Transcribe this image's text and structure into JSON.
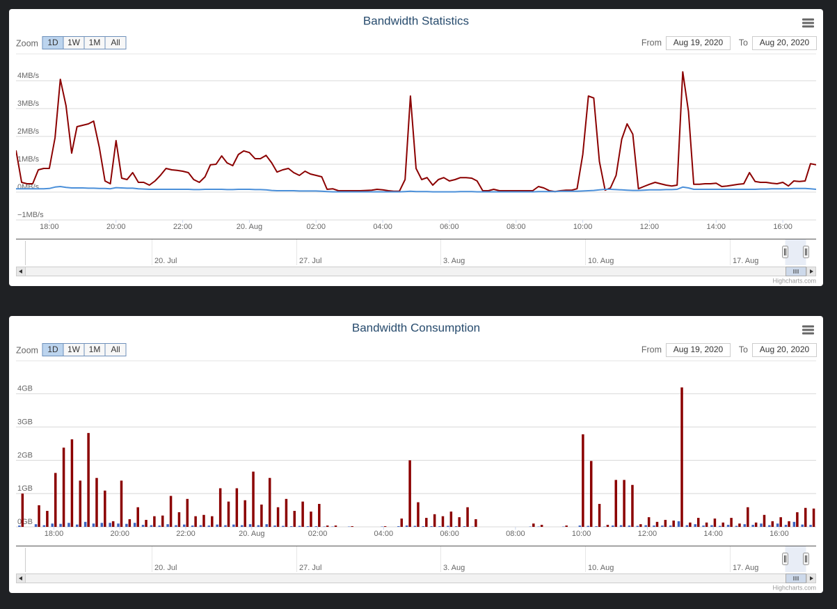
{
  "chart_data": [
    {
      "type": "line",
      "title": "Bandwidth Statistics",
      "zoom_label": "Zoom",
      "zoom_buttons": [
        "1D",
        "1W",
        "1M",
        "All"
      ],
      "selected_zoom": 0,
      "from_label": "From",
      "from": "Aug 19, 2020",
      "to_label": "To",
      "to": "Aug 20, 2020",
      "x": [
        17,
        17.17,
        17.33,
        17.5,
        17.67,
        17.83,
        18,
        18.17,
        18.33,
        18.5,
        18.67,
        18.83,
        19,
        19.17,
        19.33,
        19.5,
        19.67,
        19.83,
        20,
        20.17,
        20.33,
        20.5,
        20.67,
        20.83,
        21,
        21.17,
        21.33,
        21.5,
        21.67,
        21.83,
        22,
        22.17,
        22.33,
        22.5,
        22.67,
        22.83,
        23,
        23.17,
        23.33,
        23.5,
        23.67,
        23.83,
        24,
        24.17,
        24.33,
        24.5,
        24.67,
        24.83,
        25,
        25.17,
        25.33,
        25.5,
        25.67,
        25.83,
        26,
        26.17,
        26.33,
        26.5,
        26.67,
        27,
        27.33,
        27.67,
        27.83,
        28,
        28.17,
        28.33,
        28.5,
        28.67,
        28.83,
        29,
        29.17,
        29.33,
        29.5,
        29.67,
        29.83,
        30,
        30.17,
        30.33,
        30.5,
        30.67,
        30.83,
        31,
        31.17,
        31.33,
        31.5,
        31.83,
        32.17,
        32.5,
        32.67,
        32.83,
        33,
        33.17,
        33.33,
        33.5,
        33.67,
        33.83,
        34,
        34.17,
        34.33,
        34.5,
        34.67,
        34.83,
        35,
        35.17,
        35.33,
        35.5,
        35.67,
        35.83,
        36,
        36.17,
        36.33,
        36.5,
        36.67,
        36.83,
        37,
        37.17,
        37.33,
        37.5,
        37.67,
        37.83,
        38,
        38.17,
        38.33,
        38.5,
        38.67,
        38.83,
        39,
        39.17,
        39.33,
        39.5,
        39.67,
        39.83,
        40,
        40.17,
        40.33,
        40.5,
        40.67,
        40.83,
        41
      ],
      "xlim": [
        17,
        41
      ],
      "xticks": [
        {
          "value": 18,
          "label": "18:00"
        },
        {
          "value": 20,
          "label": "20:00"
        },
        {
          "value": 22,
          "label": "22:00"
        },
        {
          "value": 24,
          "label": "20. Aug"
        },
        {
          "value": 26,
          "label": "02:00"
        },
        {
          "value": 28,
          "label": "04:00"
        },
        {
          "value": 30,
          "label": "06:00"
        },
        {
          "value": 32,
          "label": "08:00"
        },
        {
          "value": 34,
          "label": "10:00"
        },
        {
          "value": 36,
          "label": "12:00"
        },
        {
          "value": 38,
          "label": "14:00"
        },
        {
          "value": 40,
          "label": "16:00"
        }
      ],
      "ylim": [
        -1,
        4.5
      ],
      "yticks": [
        {
          "value": -1,
          "label": "−1MB/s"
        },
        {
          "value": 0,
          "label": "0MB/s"
        },
        {
          "value": 1,
          "label": "1MB/s"
        },
        {
          "value": 2,
          "label": "2MB/s"
        },
        {
          "value": 3,
          "label": "3MB/s"
        },
        {
          "value": 4,
          "label": "4MB/s"
        }
      ],
      "grid": true,
      "series": [
        {
          "color": "#8b0000",
          "values": [
            1.5,
            0.35,
            0.3,
            0.3,
            0.8,
            0.85,
            0.85,
            1.95,
            4.05,
            3.1,
            1.4,
            2.35,
            2.4,
            2.45,
            2.55,
            1.6,
            0.4,
            0.3,
            1.85,
            0.5,
            0.45,
            0.7,
            0.35,
            0.35,
            0.25,
            0.4,
            0.6,
            0.85,
            0.8,
            0.78,
            0.75,
            0.7,
            0.45,
            0.35,
            0.55,
            0.98,
            1.0,
            1.3,
            1.05,
            0.95,
            1.35,
            1.48,
            1.42,
            1.2,
            1.2,
            1.32,
            1.05,
            0.72,
            0.8,
            0.85,
            0.7,
            0.6,
            0.75,
            0.65,
            0.6,
            0.55,
            0.1,
            0.12,
            0.05,
            0.05,
            0.05,
            0.07,
            0.1,
            0.08,
            0.05,
            0.03,
            0.03,
            0.45,
            3.45,
            0.85,
            0.45,
            0.52,
            0.25,
            0.45,
            0.52,
            0.4,
            0.45,
            0.52,
            0.52,
            0.5,
            0.4,
            0.05,
            0.05,
            0.1,
            0.05,
            0.05,
            0.05,
            0.05,
            0.2,
            0.15,
            0.05,
            0.02,
            0.05,
            0.07,
            0.07,
            0.12,
            1.35,
            3.45,
            3.38,
            1.1,
            0.07,
            0.15,
            0.6,
            1.9,
            2.45,
            2.08,
            0.12,
            0.2,
            0.28,
            0.35,
            0.3,
            0.25,
            0.22,
            0.25,
            4.32,
            2.9,
            0.28,
            0.28,
            0.3,
            0.3,
            0.32,
            0.2,
            0.22,
            0.25,
            0.28,
            0.3,
            0.7,
            0.38,
            0.35,
            0.35,
            0.32,
            0.3,
            0.35,
            0.22,
            0.4,
            0.38,
            0.4,
            1.02,
            0.98
          ]
        },
        {
          "color": "#4a8fd9",
          "values": [
            0.12,
            0.12,
            0.12,
            0.12,
            0.12,
            0.12,
            0.13,
            0.18,
            0.2,
            0.17,
            0.15,
            0.15,
            0.15,
            0.14,
            0.14,
            0.13,
            0.13,
            0.12,
            0.16,
            0.15,
            0.14,
            0.14,
            0.12,
            0.11,
            0.1,
            0.1,
            0.1,
            0.1,
            0.1,
            0.1,
            0.1,
            0.1,
            0.09,
            0.09,
            0.1,
            0.1,
            0.1,
            0.1,
            0.09,
            0.09,
            0.1,
            0.1,
            0.1,
            0.09,
            0.09,
            0.08,
            0.06,
            0.05,
            0.05,
            0.05,
            0.05,
            0.04,
            0.04,
            0.04,
            0.04,
            0.03,
            0.02,
            0.01,
            0.01,
            0.01,
            0.01,
            0.01,
            0.01,
            0.01,
            0.01,
            0.01,
            0.01,
            0.02,
            0.03,
            0.02,
            0.02,
            0.02,
            0.01,
            0.01,
            0.01,
            0.01,
            0.01,
            0.02,
            0.02,
            0.02,
            0.01,
            0.01,
            0.01,
            0.01,
            0.01,
            0.01,
            0.01,
            0.01,
            0.02,
            0.02,
            0.02,
            0.02,
            0.03,
            0.03,
            0.03,
            0.03,
            0.04,
            0.05,
            0.06,
            0.08,
            0.1,
            0.1,
            0.09,
            0.08,
            0.07,
            0.06,
            0.06,
            0.07,
            0.08,
            0.08,
            0.08,
            0.09,
            0.09,
            0.1,
            0.18,
            0.15,
            0.1,
            0.1,
            0.1,
            0.1,
            0.1,
            0.1,
            0.1,
            0.1,
            0.1,
            0.1,
            0.1,
            0.1,
            0.11,
            0.11,
            0.12,
            0.12,
            0.12,
            0.12,
            0.13,
            0.13,
            0.13,
            0.12,
            0.1
          ]
        }
      ],
      "navigator_labels": [
        "20. Jul",
        "27. Jul",
        "3. Aug",
        "10. Aug",
        "17. Aug"
      ],
      "credit": "Highcharts.com"
    },
    {
      "type": "bar",
      "title": "Bandwidth Consumption",
      "zoom_label": "Zoom",
      "zoom_buttons": [
        "1D",
        "1W",
        "1M",
        "All"
      ],
      "selected_zoom": 0,
      "from_label": "From",
      "from": "Aug 19, 2020",
      "to_label": "To",
      "to": "Aug 20, 2020",
      "x": [
        17,
        17.5,
        17.75,
        18,
        18.25,
        18.5,
        18.75,
        19,
        19.25,
        19.5,
        19.75,
        20,
        20.25,
        20.5,
        20.75,
        21,
        21.25,
        21.5,
        21.75,
        22,
        22.25,
        22.5,
        22.75,
        23,
        23.25,
        23.5,
        23.75,
        24,
        24.25,
        24.5,
        24.75,
        25,
        25.25,
        25.5,
        25.75,
        26,
        26.25,
        26.5,
        27,
        28,
        28.5,
        28.75,
        29,
        29.25,
        29.5,
        29.75,
        30,
        30.25,
        30.5,
        30.75,
        32.5,
        32.75,
        33.5,
        34,
        34.25,
        34.5,
        34.75,
        35,
        35.25,
        35.5,
        35.75,
        36,
        36.25,
        36.5,
        36.75,
        37,
        37.25,
        37.5,
        37.75,
        38,
        38.25,
        38.5,
        38.75,
        39,
        39.25,
        39.5,
        39.75,
        40,
        40.25,
        40.5,
        40.75,
        41
      ],
      "xlim": [
        16.85,
        41.12
      ],
      "xticks": [
        {
          "value": 18,
          "label": "18:00"
        },
        {
          "value": 20,
          "label": "20:00"
        },
        {
          "value": 22,
          "label": "22:00"
        },
        {
          "value": 24,
          "label": "20. Aug"
        },
        {
          "value": 26,
          "label": "02:00"
        },
        {
          "value": 28,
          "label": "04:00"
        },
        {
          "value": 30,
          "label": "06:00"
        },
        {
          "value": 32,
          "label": "08:00"
        },
        {
          "value": 34,
          "label": "10:00"
        },
        {
          "value": 36,
          "label": "12:00"
        },
        {
          "value": 38,
          "label": "14:00"
        },
        {
          "value": 40,
          "label": "16:00"
        }
      ],
      "ylim": [
        0,
        4.6
      ],
      "yticks": [
        {
          "value": 0,
          "label": "0GB"
        },
        {
          "value": 1,
          "label": "1GB"
        },
        {
          "value": 2,
          "label": "2GB"
        },
        {
          "value": 3,
          "label": "3GB"
        },
        {
          "value": 4,
          "label": "4GB"
        }
      ],
      "grid": true,
      "series": [
        {
          "color": "#3d63c0",
          "values": [
            0.04,
            0.08,
            0.05,
            0.1,
            0.09,
            0.12,
            0.07,
            0.15,
            0.1,
            0.12,
            0.12,
            0.1,
            0.09,
            0.12,
            0.06,
            0.05,
            0.04,
            0.08,
            0.05,
            0.07,
            0.04,
            0.05,
            0.04,
            0.07,
            0.05,
            0.07,
            0.05,
            0.08,
            0.05,
            0.08,
            0.04,
            0.03,
            0.02,
            0.03,
            0.02,
            0.02,
            0.01,
            0.01,
            0.01,
            0.01,
            0.02,
            0.04,
            0.03,
            0.02,
            0.02,
            0.02,
            0.03,
            0.02,
            0.02,
            0.01,
            0.01,
            0.01,
            0.01,
            0.04,
            0.03,
            0.02,
            0.01,
            0.04,
            0.05,
            0.04,
            0.03,
            0.05,
            0.04,
            0.04,
            0.04,
            0.17,
            0.05,
            0.08,
            0.04,
            0.05,
            0.03,
            0.06,
            0.03,
            0.08,
            0.06,
            0.1,
            0.05,
            0.1,
            0.06,
            0.15,
            0.07,
            0.06
          ]
        },
        {
          "color": "#8b0000",
          "values": [
            1.0,
            0.65,
            0.48,
            1.62,
            2.38,
            2.63,
            1.39,
            2.82,
            1.47,
            1.09,
            0.17,
            1.39,
            0.23,
            0.59,
            0.21,
            0.32,
            0.34,
            0.93,
            0.44,
            0.84,
            0.32,
            0.36,
            0.32,
            1.16,
            0.76,
            1.16,
            0.8,
            1.66,
            0.67,
            1.47,
            0.59,
            0.84,
            0.48,
            0.76,
            0.46,
            0.69,
            0.04,
            0.04,
            0.02,
            0.02,
            0.25,
            2.0,
            0.74,
            0.27,
            0.38,
            0.32,
            0.46,
            0.29,
            0.59,
            0.23,
            0.1,
            0.06,
            0.04,
            2.78,
            1.98,
            0.69,
            0.06,
            1.41,
            1.41,
            1.26,
            0.08,
            0.29,
            0.15,
            0.21,
            0.19,
            4.19,
            0.13,
            0.27,
            0.13,
            0.25,
            0.13,
            0.27,
            0.1,
            0.59,
            0.13,
            0.36,
            0.17,
            0.29,
            0.17,
            0.44,
            0.57,
            0.55
          ]
        }
      ],
      "navigator_labels": [
        "20. Jul",
        "27. Jul",
        "3. Aug",
        "10. Aug",
        "17. Aug"
      ],
      "credit": "Highcharts.com"
    }
  ]
}
